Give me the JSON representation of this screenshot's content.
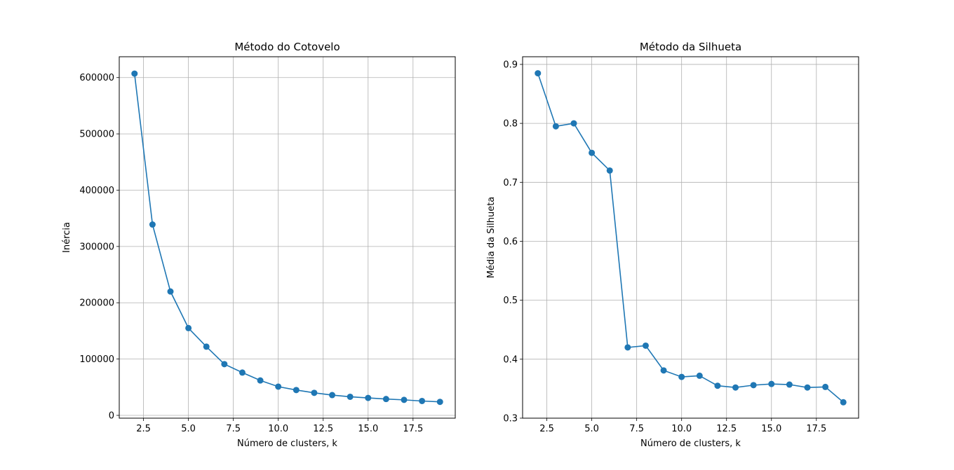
{
  "chart_data": [
    {
      "type": "line",
      "title": "Método do Cotovelo",
      "xlabel": "Número de clusters, k",
      "ylabel": "Inércia",
      "xlim": [
        1.15,
        19.85
      ],
      "ylim": [
        -5000,
        637000
      ],
      "xticks": [
        2.5,
        5.0,
        7.5,
        10.0,
        12.5,
        15.0,
        17.5
      ],
      "xtick_labels": [
        "2.5",
        "5.0",
        "7.5",
        "10.0",
        "12.5",
        "15.0",
        "17.5"
      ],
      "yticks": [
        0,
        100000,
        200000,
        300000,
        400000,
        500000,
        600000
      ],
      "ytick_labels": [
        "0",
        "100000",
        "200000",
        "300000",
        "400000",
        "500000",
        "600000"
      ],
      "grid": true,
      "markers": true,
      "color": "#1f77b4",
      "x": [
        2,
        3,
        4,
        5,
        6,
        7,
        8,
        9,
        10,
        11,
        12,
        13,
        14,
        15,
        16,
        17,
        18,
        19
      ],
      "y": [
        607000,
        339000,
        220000,
        155000,
        122000,
        91000,
        76000,
        62000,
        51000,
        45000,
        40000,
        36000,
        33000,
        31000,
        29000,
        27500,
        25500,
        24000
      ]
    },
    {
      "type": "line",
      "title": "Método da Silhueta",
      "xlabel": "Número de clusters, k",
      "ylabel": "Média da Silhueta",
      "xlim": [
        1.15,
        19.85
      ],
      "ylim": [
        0.3,
        0.913
      ],
      "xticks": [
        2.5,
        5.0,
        7.5,
        10.0,
        12.5,
        15.0,
        17.5
      ],
      "xtick_labels": [
        "2.5",
        "5.0",
        "7.5",
        "10.0",
        "12.5",
        "15.0",
        "17.5"
      ],
      "yticks": [
        0.3,
        0.4,
        0.5,
        0.6,
        0.7,
        0.8,
        0.9
      ],
      "ytick_labels": [
        "0.3",
        "0.4",
        "0.5",
        "0.6",
        "0.7",
        "0.8",
        "0.9"
      ],
      "grid": true,
      "markers": true,
      "color": "#1f77b4",
      "x": [
        2,
        3,
        4,
        5,
        6,
        7,
        8,
        9,
        10,
        11,
        12,
        13,
        14,
        15,
        16,
        17,
        18,
        19
      ],
      "y": [
        0.885,
        0.795,
        0.8,
        0.75,
        0.72,
        0.42,
        0.423,
        0.381,
        0.37,
        0.372,
        0.355,
        0.352,
        0.356,
        0.358,
        0.357,
        0.352,
        0.353,
        0.327
      ]
    }
  ]
}
